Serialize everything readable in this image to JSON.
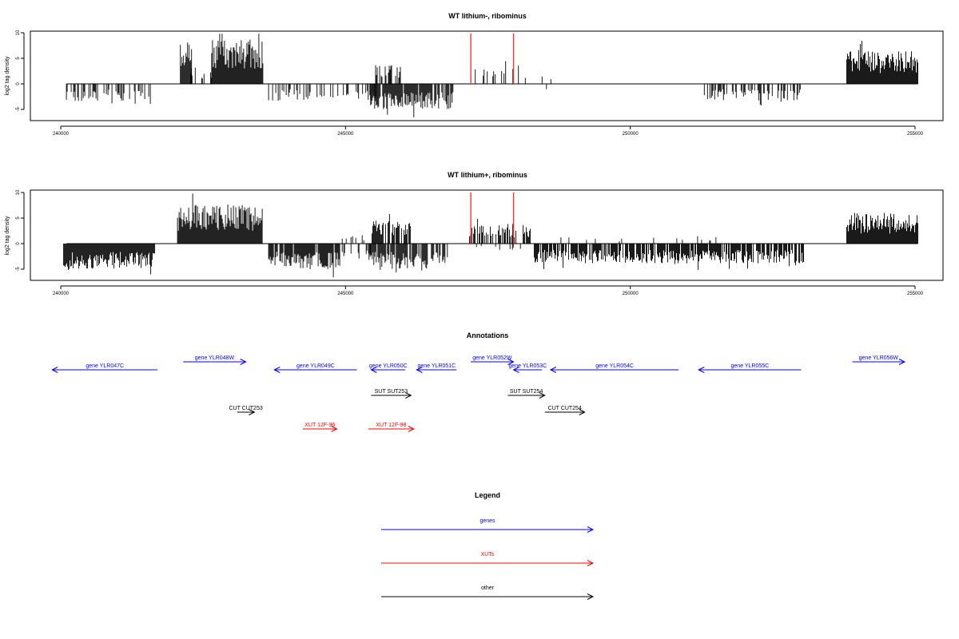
{
  "colors": {
    "signal": "#000000",
    "marker": "#ff3333",
    "gene": "#0000ff",
    "xut": "#ff0000",
    "other": "#000000",
    "frame": "#000000"
  },
  "chart_data": [
    {
      "type": "bar",
      "title": "WT lithium-, ribominus",
      "ylabel": "log2 tag density",
      "xlim": [
        239850,
        255150
      ],
      "ylim": [
        -7,
        10
      ],
      "xticks": [
        "240000",
        "245000",
        "250000",
        "255000"
      ],
      "yticks": [
        "10",
        "5",
        "0",
        "-5"
      ],
      "markers_x": [
        247200,
        247950
      ],
      "segments": [
        {
          "start": 240100,
          "end": 241600,
          "sign": -1,
          "amp": 3.2,
          "density": 0.35
        },
        {
          "start": 242100,
          "end": 242300,
          "sign": 1,
          "amp": 7.5,
          "density": 0.9
        },
        {
          "start": 242250,
          "end": 242650,
          "sign": 1,
          "amp": 3.0,
          "density": 0.25
        },
        {
          "start": 242650,
          "end": 243550,
          "sign": 1,
          "amp": 8.0,
          "density": 1.0
        },
        {
          "start": 243650,
          "end": 244400,
          "sign": -1,
          "amp": 3.0,
          "density": 0.35
        },
        {
          "start": 244500,
          "end": 245600,
          "sign": -1,
          "amp": 2.8,
          "density": 0.25
        },
        {
          "start": 245500,
          "end": 246000,
          "sign": 1,
          "amp": 3.5,
          "density": 0.45
        },
        {
          "start": 245400,
          "end": 246900,
          "sign": -1,
          "amp": 4.5,
          "density": 0.8
        },
        {
          "start": 247250,
          "end": 248100,
          "sign": 1,
          "amp": 3.5,
          "density": 0.25
        },
        {
          "start": 248100,
          "end": 248650,
          "sign": 1,
          "amp": 1.5,
          "density": 0.08
        },
        {
          "start": 248500,
          "end": 248600,
          "sign": -1,
          "amp": 1.0,
          "density": 0.1
        },
        {
          "start": 251300,
          "end": 253000,
          "sign": -1,
          "amp": 3.0,
          "density": 0.45
        },
        {
          "start": 253800,
          "end": 255050,
          "sign": 1,
          "amp": 6.0,
          "density": 1.0
        }
      ]
    },
    {
      "type": "bar",
      "title": "WT lithium+, ribominus",
      "ylabel": "log2 tag density",
      "xlim": [
        239850,
        255150
      ],
      "ylim": [
        -7,
        10
      ],
      "xticks": [
        "240000",
        "245000",
        "250000",
        "255000"
      ],
      "yticks": [
        "10",
        "5",
        "0",
        "-5"
      ],
      "markers_x": [
        247200,
        247950
      ],
      "segments": [
        {
          "start": 240050,
          "end": 241650,
          "sign": -1,
          "amp": 4.5,
          "density": 1.0
        },
        {
          "start": 242050,
          "end": 243550,
          "sign": 1,
          "amp": 7.0,
          "density": 1.0
        },
        {
          "start": 243650,
          "end": 244900,
          "sign": -1,
          "amp": 4.5,
          "density": 0.85
        },
        {
          "start": 244900,
          "end": 245450,
          "sign": -1,
          "amp": 2.5,
          "density": 0.25
        },
        {
          "start": 244900,
          "end": 245450,
          "sign": 1,
          "amp": 1.5,
          "density": 0.15
        },
        {
          "start": 245450,
          "end": 246150,
          "sign": 1,
          "amp": 4.0,
          "density": 0.8
        },
        {
          "start": 245400,
          "end": 246800,
          "sign": -1,
          "amp": 4.5,
          "density": 0.8
        },
        {
          "start": 247150,
          "end": 248250,
          "sign": 1,
          "amp": 3.5,
          "density": 0.6
        },
        {
          "start": 247300,
          "end": 248100,
          "sign": -1,
          "amp": 1.2,
          "density": 0.15
        },
        {
          "start": 248300,
          "end": 253050,
          "sign": -1,
          "amp": 3.5,
          "density": 0.8
        },
        {
          "start": 248600,
          "end": 252000,
          "sign": 1,
          "amp": 1.2,
          "density": 0.06
        },
        {
          "start": 253800,
          "end": 255050,
          "sign": 1,
          "amp": 5.5,
          "density": 1.0
        }
      ]
    }
  ],
  "annotations": {
    "title": "Annotations",
    "xlim": [
      239850,
      255150
    ],
    "items": [
      {
        "label": "gene YLR047C",
        "start": 239850,
        "end": 241700,
        "strand": -1,
        "row": 2,
        "kind": "gene"
      },
      {
        "label": "gene YLR048W",
        "start": 242150,
        "end": 243250,
        "strand": 1,
        "row": 1,
        "kind": "gene"
      },
      {
        "label": "gene YLR049C",
        "start": 243750,
        "end": 245200,
        "strand": -1,
        "row": 2,
        "kind": "gene"
      },
      {
        "label": "gene YLR050C",
        "start": 245450,
        "end": 246050,
        "strand": -1,
        "row": 2,
        "kind": "gene"
      },
      {
        "label": "gene YLR051C",
        "start": 246250,
        "end": 246950,
        "strand": -1,
        "row": 2,
        "kind": "gene"
      },
      {
        "label": "gene YLR052W",
        "start": 247200,
        "end": 247950,
        "strand": 1,
        "row": 1,
        "kind": "gene"
      },
      {
        "label": "gene YLR053C",
        "start": 247950,
        "end": 248450,
        "strand": -1,
        "row": 2,
        "kind": "gene"
      },
      {
        "label": "gene YLR054C",
        "start": 248600,
        "end": 250850,
        "strand": -1,
        "row": 2,
        "kind": "gene"
      },
      {
        "label": "gene YLR055C",
        "start": 251200,
        "end": 253000,
        "strand": -1,
        "row": 2,
        "kind": "gene"
      },
      {
        "label": "gene YLR056W",
        "start": 253900,
        "end": 255050,
        "strand": 1,
        "row": 1,
        "kind": "gene"
      },
      {
        "label": "SUT SUT253",
        "start": 245450,
        "end": 246150,
        "strand": 1,
        "row": 3,
        "kind": "other"
      },
      {
        "label": "SUT SUT254",
        "start": 247850,
        "end": 248500,
        "strand": 1,
        "row": 3,
        "kind": "other"
      },
      {
        "label": "CUT CUT253",
        "start": 243100,
        "end": 243400,
        "strand": 1,
        "row": 4,
        "kind": "other"
      },
      {
        "label": "CUT CUT254",
        "start": 248500,
        "end": 249200,
        "strand": 1,
        "row": 4,
        "kind": "other"
      },
      {
        "label": "XUT 12F-96",
        "start": 244250,
        "end": 244850,
        "strand": 1,
        "row": 5,
        "kind": "xut"
      },
      {
        "label": "XUT 12F-98",
        "start": 245400,
        "end": 246200,
        "strand": 1,
        "row": 5,
        "kind": "xut"
      }
    ]
  },
  "legend": {
    "title": "Legend",
    "entries": [
      {
        "label": "genes",
        "kind": "gene"
      },
      {
        "label": "XUTs",
        "kind": "xut"
      },
      {
        "label": "other",
        "kind": "other"
      }
    ]
  }
}
